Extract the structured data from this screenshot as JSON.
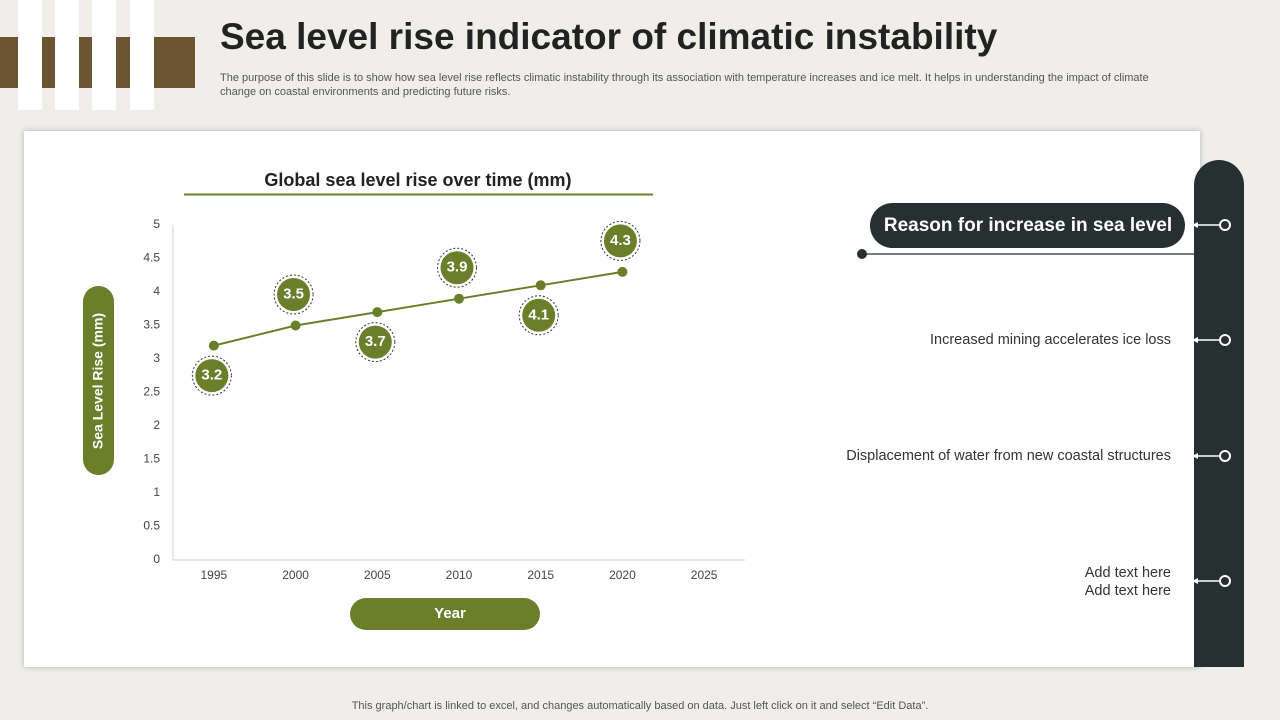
{
  "header": {
    "title": "Sea level rise indicator of climatic instability",
    "description": [
      "The purpose of this slide is to show how sea level rise reflects climatic instability through its association with temperature increases and ice melt. It helps in understanding the impact of climate",
      "change on coastal environments and predicting future risks."
    ]
  },
  "chart_data": {
    "type": "line",
    "title": "Global sea level rise over time (mm)",
    "x_label": "Year",
    "y_label": "Sea Level Rise (mm)",
    "categories": [
      "1995",
      "2000",
      "2005",
      "2010",
      "2015",
      "2020",
      "2025"
    ],
    "values": [
      3.2,
      3.5,
      3.7,
      3.9,
      4.1,
      4.3,
      null
    ],
    "color": "#6b7f2a",
    "ylim": [
      0,
      5
    ],
    "yticks": [
      0,
      0.5,
      1,
      1.5,
      2,
      2.5,
      3,
      3.5,
      4,
      4.5,
      5
    ],
    "grid": false
  },
  "reasons": {
    "heading": "Reason for increase in sea level",
    "items": [
      [
        "Increased mining accelerates ice loss"
      ],
      [
        "Displacement of water from new coastal structures"
      ],
      [
        "Add text here",
        "Add text here"
      ]
    ]
  },
  "footer": "This graph/chart is linked to excel, and changes automatically based on data. Just left click on it and select “Edit Data”."
}
